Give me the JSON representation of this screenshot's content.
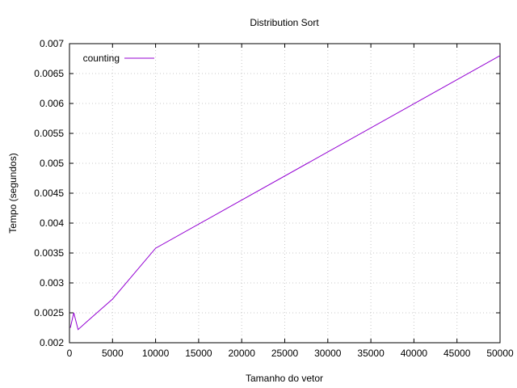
{
  "chart_data": {
    "type": "line",
    "title": "Distribution Sort",
    "xlabel": "Tamanho do vetor",
    "ylabel": "Tempo (segundos)",
    "xlim": [
      0,
      50000
    ],
    "ylim": [
      0.002,
      0.007
    ],
    "x_ticks": [
      "0",
      "5000",
      "10000",
      "15000",
      "20000",
      "25000",
      "30000",
      "35000",
      "40000",
      "45000",
      "50000"
    ],
    "y_ticks": [
      "0.002",
      "0.0025",
      "0.003",
      "0.0035",
      "0.004",
      "0.0045",
      "0.005",
      "0.0055",
      "0.006",
      "0.0065",
      "0.007"
    ],
    "grid": true,
    "legend_position": "top-left",
    "series": [
      {
        "name": "counting",
        "color": "#9400d3",
        "x": [
          100,
          500,
          1000,
          2000,
          5000,
          10000,
          50000
        ],
        "y": [
          0.00225,
          0.0025,
          0.00222,
          0.00235,
          0.00273,
          0.00358,
          0.0068
        ]
      }
    ]
  }
}
